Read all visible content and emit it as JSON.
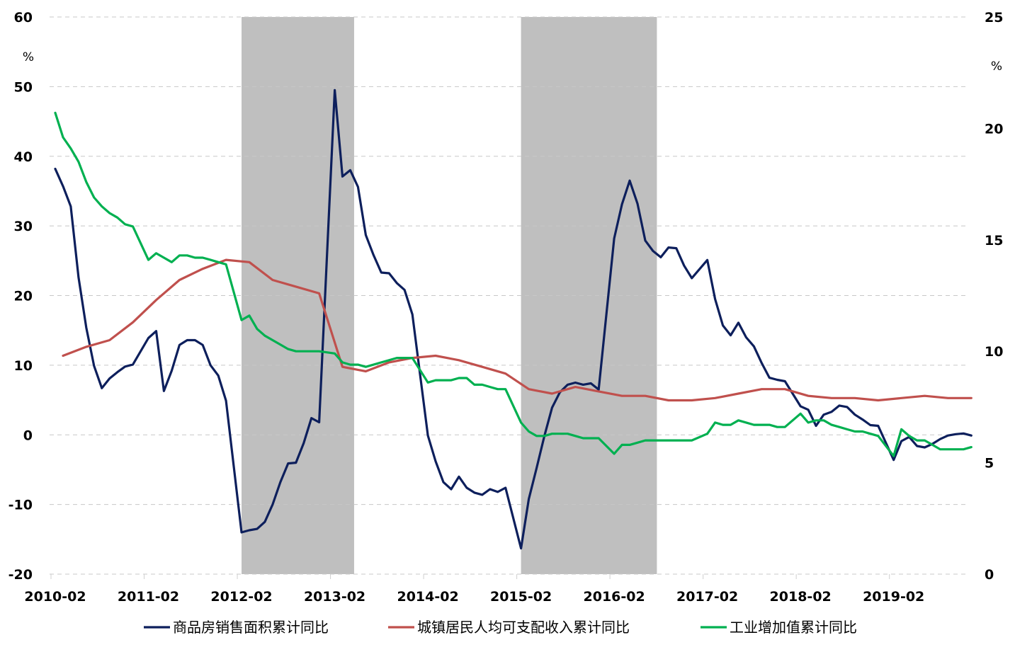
{
  "chart_data": {
    "type": "line",
    "title": "",
    "xlabel": "",
    "left_axis": {
      "unit": "%",
      "ylim": [
        -20,
        60
      ],
      "ticks": [
        -20,
        -10,
        0,
        10,
        20,
        30,
        40,
        50,
        60
      ]
    },
    "right_axis": {
      "unit": "%",
      "ylim": [
        0,
        25
      ],
      "ticks": [
        0,
        5,
        10,
        15,
        20,
        25
      ]
    },
    "x_tick_labels": [
      "2010-02",
      "2011-02",
      "2012-02",
      "2013-02",
      "2014-02",
      "2015-02",
      "2016-02",
      "2017-02",
      "2018-02",
      "2019-02"
    ],
    "shaded_periods": [
      {
        "start": "2012-02",
        "end": "2013-04"
      },
      {
        "start": "2015-02",
        "end": "2016-07"
      }
    ],
    "grid": "horizontal dashed",
    "legend_position": "bottom",
    "series": [
      {
        "name": "商品房销售面积累计同比",
        "axis": "left",
        "color": "#0d1f5c",
        "points": [
          [
            "2010-02",
            38.2
          ],
          [
            "2010-03",
            35.7
          ],
          [
            "2010-04",
            32.8
          ],
          [
            "2010-05",
            22.6
          ],
          [
            "2010-06",
            15.4
          ],
          [
            "2010-07",
            9.9
          ],
          [
            "2010-08",
            6.7
          ],
          [
            "2010-09",
            8.1
          ],
          [
            "2010-10",
            9.0
          ],
          [
            "2010-11",
            9.8
          ],
          [
            "2010-12",
            10.1
          ],
          [
            "2011-02",
            13.9
          ],
          [
            "2011-03",
            14.9
          ],
          [
            "2011-04",
            6.3
          ],
          [
            "2011-05",
            9.2
          ],
          [
            "2011-06",
            12.9
          ],
          [
            "2011-07",
            13.6
          ],
          [
            "2011-08",
            13.6
          ],
          [
            "2011-09",
            12.9
          ],
          [
            "2011-10",
            10.0
          ],
          [
            "2011-11",
            8.5
          ],
          [
            "2011-12",
            4.9
          ],
          [
            "2012-02",
            -14.0
          ],
          [
            "2012-03",
            -13.7
          ],
          [
            "2012-04",
            -13.5
          ],
          [
            "2012-05",
            -12.5
          ],
          [
            "2012-06",
            -10.0
          ],
          [
            "2012-07",
            -6.8
          ],
          [
            "2012-08",
            -4.1
          ],
          [
            "2012-09",
            -4.0
          ],
          [
            "2012-10",
            -1.2
          ],
          [
            "2012-11",
            2.4
          ],
          [
            "2012-12",
            1.8
          ],
          [
            "2013-02",
            49.5
          ],
          [
            "2013-03",
            37.1
          ],
          [
            "2013-04",
            38.0
          ],
          [
            "2013-05",
            35.6
          ],
          [
            "2013-06",
            28.7
          ],
          [
            "2013-07",
            25.8
          ],
          [
            "2013-08",
            23.3
          ],
          [
            "2013-09",
            23.2
          ],
          [
            "2013-10",
            21.8
          ],
          [
            "2013-11",
            20.8
          ],
          [
            "2013-12",
            17.3
          ],
          [
            "2014-02",
            -0.1
          ],
          [
            "2014-03",
            -3.8
          ],
          [
            "2014-04",
            -6.8
          ],
          [
            "2014-05",
            -7.8
          ],
          [
            "2014-06",
            -6.0
          ],
          [
            "2014-07",
            -7.6
          ],
          [
            "2014-08",
            -8.3
          ],
          [
            "2014-09",
            -8.6
          ],
          [
            "2014-10",
            -7.8
          ],
          [
            "2014-11",
            -8.2
          ],
          [
            "2014-12",
            -7.6
          ],
          [
            "2015-02",
            -16.3
          ],
          [
            "2015-03",
            -9.2
          ],
          [
            "2015-04",
            -4.8
          ],
          [
            "2015-05",
            -0.2
          ],
          [
            "2015-06",
            3.9
          ],
          [
            "2015-07",
            6.1
          ],
          [
            "2015-08",
            7.2
          ],
          [
            "2015-09",
            7.5
          ],
          [
            "2015-10",
            7.2
          ],
          [
            "2015-11",
            7.4
          ],
          [
            "2015-12",
            6.5
          ],
          [
            "2016-02",
            28.2
          ],
          [
            "2016-03",
            33.1
          ],
          [
            "2016-04",
            36.5
          ],
          [
            "2016-05",
            33.2
          ],
          [
            "2016-06",
            27.9
          ],
          [
            "2016-07",
            26.4
          ],
          [
            "2016-08",
            25.5
          ],
          [
            "2016-09",
            26.9
          ],
          [
            "2016-10",
            26.8
          ],
          [
            "2016-11",
            24.3
          ],
          [
            "2016-12",
            22.5
          ],
          [
            "2017-02",
            25.1
          ],
          [
            "2017-03",
            19.5
          ],
          [
            "2017-04",
            15.7
          ],
          [
            "2017-05",
            14.3
          ],
          [
            "2017-06",
            16.1
          ],
          [
            "2017-07",
            14.0
          ],
          [
            "2017-08",
            12.7
          ],
          [
            "2017-09",
            10.3
          ],
          [
            "2017-10",
            8.2
          ],
          [
            "2017-11",
            7.9
          ],
          [
            "2017-12",
            7.7
          ],
          [
            "2018-02",
            4.1
          ],
          [
            "2018-03",
            3.6
          ],
          [
            "2018-04",
            1.3
          ],
          [
            "2018-05",
            2.9
          ],
          [
            "2018-06",
            3.3
          ],
          [
            "2018-07",
            4.2
          ],
          [
            "2018-08",
            4.0
          ],
          [
            "2018-09",
            2.9
          ],
          [
            "2018-10",
            2.2
          ],
          [
            "2018-11",
            1.4
          ],
          [
            "2018-12",
            1.3
          ],
          [
            "2019-02",
            -3.6
          ],
          [
            "2019-03",
            -0.9
          ],
          [
            "2019-04",
            -0.3
          ],
          [
            "2019-05",
            -1.6
          ],
          [
            "2019-06",
            -1.8
          ],
          [
            "2019-07",
            -1.3
          ],
          [
            "2019-08",
            -0.6
          ],
          [
            "2019-09",
            -0.1
          ],
          [
            "2019-10",
            0.1
          ],
          [
            "2019-11",
            0.2
          ],
          [
            "2019-12",
            -0.1
          ]
        ]
      },
      {
        "name": "城镇居民人均可支配收入累计同比",
        "axis": "right",
        "color": "#c0504d",
        "points": [
          [
            "2010-03",
            9.8
          ],
          [
            "2010-06",
            10.2
          ],
          [
            "2010-09",
            10.5
          ],
          [
            "2010-12",
            11.3
          ],
          [
            "2011-03",
            12.3
          ],
          [
            "2011-06",
            13.2
          ],
          [
            "2011-09",
            13.7
          ],
          [
            "2011-12",
            14.1
          ],
          [
            "2012-03",
            14.0
          ],
          [
            "2012-06",
            13.2
          ],
          [
            "2012-09",
            12.9
          ],
          [
            "2012-12",
            12.6
          ],
          [
            "2013-03",
            9.3
          ],
          [
            "2013-06",
            9.1
          ],
          [
            "2013-09",
            9.5
          ],
          [
            "2013-12",
            9.7
          ],
          [
            "2014-03",
            9.8
          ],
          [
            "2014-06",
            9.6
          ],
          [
            "2014-09",
            9.3
          ],
          [
            "2014-12",
            9.0
          ],
          [
            "2015-03",
            8.3
          ],
          [
            "2015-06",
            8.1
          ],
          [
            "2015-09",
            8.4
          ],
          [
            "2015-12",
            8.2
          ],
          [
            "2016-03",
            8.0
          ],
          [
            "2016-06",
            8.0
          ],
          [
            "2016-09",
            7.8
          ],
          [
            "2016-12",
            7.8
          ],
          [
            "2017-03",
            7.9
          ],
          [
            "2017-06",
            8.1
          ],
          [
            "2017-09",
            8.3
          ],
          [
            "2017-12",
            8.3
          ],
          [
            "2018-03",
            8.0
          ],
          [
            "2018-06",
            7.9
          ],
          [
            "2018-09",
            7.9
          ],
          [
            "2018-12",
            7.8
          ],
          [
            "2019-03",
            7.9
          ],
          [
            "2019-06",
            8.0
          ],
          [
            "2019-09",
            7.9
          ],
          [
            "2019-12",
            7.9
          ]
        ]
      },
      {
        "name": "工业增加值累计同比",
        "axis": "right",
        "color": "#00b050",
        "points": [
          [
            "2010-02",
            20.7
          ],
          [
            "2010-03",
            19.6
          ],
          [
            "2010-04",
            19.1
          ],
          [
            "2010-05",
            18.5
          ],
          [
            "2010-06",
            17.6
          ],
          [
            "2010-07",
            16.9
          ],
          [
            "2010-08",
            16.5
          ],
          [
            "2010-09",
            16.2
          ],
          [
            "2010-10",
            16.0
          ],
          [
            "2010-11",
            15.7
          ],
          [
            "2010-12",
            15.6
          ],
          [
            "2011-02",
            14.1
          ],
          [
            "2011-03",
            14.4
          ],
          [
            "2011-04",
            14.2
          ],
          [
            "2011-05",
            14.0
          ],
          [
            "2011-06",
            14.3
          ],
          [
            "2011-07",
            14.3
          ],
          [
            "2011-08",
            14.2
          ],
          [
            "2011-09",
            14.2
          ],
          [
            "2011-10",
            14.1
          ],
          [
            "2011-11",
            14.0
          ],
          [
            "2011-12",
            13.9
          ],
          [
            "2012-02",
            11.4
          ],
          [
            "2012-03",
            11.6
          ],
          [
            "2012-04",
            11.0
          ],
          [
            "2012-05",
            10.7
          ],
          [
            "2012-06",
            10.5
          ],
          [
            "2012-07",
            10.3
          ],
          [
            "2012-08",
            10.1
          ],
          [
            "2012-09",
            10.0
          ],
          [
            "2012-10",
            10.0
          ],
          [
            "2012-11",
            10.0
          ],
          [
            "2012-12",
            10.0
          ],
          [
            "2013-02",
            9.9
          ],
          [
            "2013-03",
            9.5
          ],
          [
            "2013-04",
            9.4
          ],
          [
            "2013-05",
            9.4
          ],
          [
            "2013-06",
            9.3
          ],
          [
            "2013-07",
            9.4
          ],
          [
            "2013-08",
            9.5
          ],
          [
            "2013-09",
            9.6
          ],
          [
            "2013-10",
            9.7
          ],
          [
            "2013-11",
            9.7
          ],
          [
            "2013-12",
            9.7
          ],
          [
            "2014-02",
            8.6
          ],
          [
            "2014-03",
            8.7
          ],
          [
            "2014-04",
            8.7
          ],
          [
            "2014-05",
            8.7
          ],
          [
            "2014-06",
            8.8
          ],
          [
            "2014-07",
            8.8
          ],
          [
            "2014-08",
            8.5
          ],
          [
            "2014-09",
            8.5
          ],
          [
            "2014-10",
            8.4
          ],
          [
            "2014-11",
            8.3
          ],
          [
            "2014-12",
            8.3
          ],
          [
            "2015-02",
            6.8
          ],
          [
            "2015-03",
            6.4
          ],
          [
            "2015-04",
            6.2
          ],
          [
            "2015-05",
            6.2
          ],
          [
            "2015-06",
            6.3
          ],
          [
            "2015-07",
            6.3
          ],
          [
            "2015-08",
            6.3
          ],
          [
            "2015-09",
            6.2
          ],
          [
            "2015-10",
            6.1
          ],
          [
            "2015-11",
            6.1
          ],
          [
            "2015-12",
            6.1
          ],
          [
            "2016-02",
            5.4
          ],
          [
            "2016-03",
            5.8
          ],
          [
            "2016-04",
            5.8
          ],
          [
            "2016-05",
            5.9
          ],
          [
            "2016-06",
            6.0
          ],
          [
            "2016-07",
            6.0
          ],
          [
            "2016-08",
            6.0
          ],
          [
            "2016-09",
            6.0
          ],
          [
            "2016-10",
            6.0
          ],
          [
            "2016-11",
            6.0
          ],
          [
            "2016-12",
            6.0
          ],
          [
            "2017-02",
            6.3
          ],
          [
            "2017-03",
            6.8
          ],
          [
            "2017-04",
            6.7
          ],
          [
            "2017-05",
            6.7
          ],
          [
            "2017-06",
            6.9
          ],
          [
            "2017-07",
            6.8
          ],
          [
            "2017-08",
            6.7
          ],
          [
            "2017-09",
            6.7
          ],
          [
            "2017-10",
            6.7
          ],
          [
            "2017-11",
            6.6
          ],
          [
            "2017-12",
            6.6
          ],
          [
            "2018-02",
            7.2
          ],
          [
            "2018-03",
            6.8
          ],
          [
            "2018-04",
            6.9
          ],
          [
            "2018-05",
            6.9
          ],
          [
            "2018-06",
            6.7
          ],
          [
            "2018-07",
            6.6
          ],
          [
            "2018-08",
            6.5
          ],
          [
            "2018-09",
            6.4
          ],
          [
            "2018-10",
            6.4
          ],
          [
            "2018-11",
            6.3
          ],
          [
            "2018-12",
            6.2
          ],
          [
            "2019-02",
            5.3
          ],
          [
            "2019-03",
            6.5
          ],
          [
            "2019-04",
            6.2
          ],
          [
            "2019-05",
            6.0
          ],
          [
            "2019-06",
            6.0
          ],
          [
            "2019-07",
            5.8
          ],
          [
            "2019-08",
            5.6
          ],
          [
            "2019-09",
            5.6
          ],
          [
            "2019-10",
            5.6
          ],
          [
            "2019-11",
            5.6
          ],
          [
            "2019-12",
            5.7
          ]
        ]
      }
    ]
  }
}
